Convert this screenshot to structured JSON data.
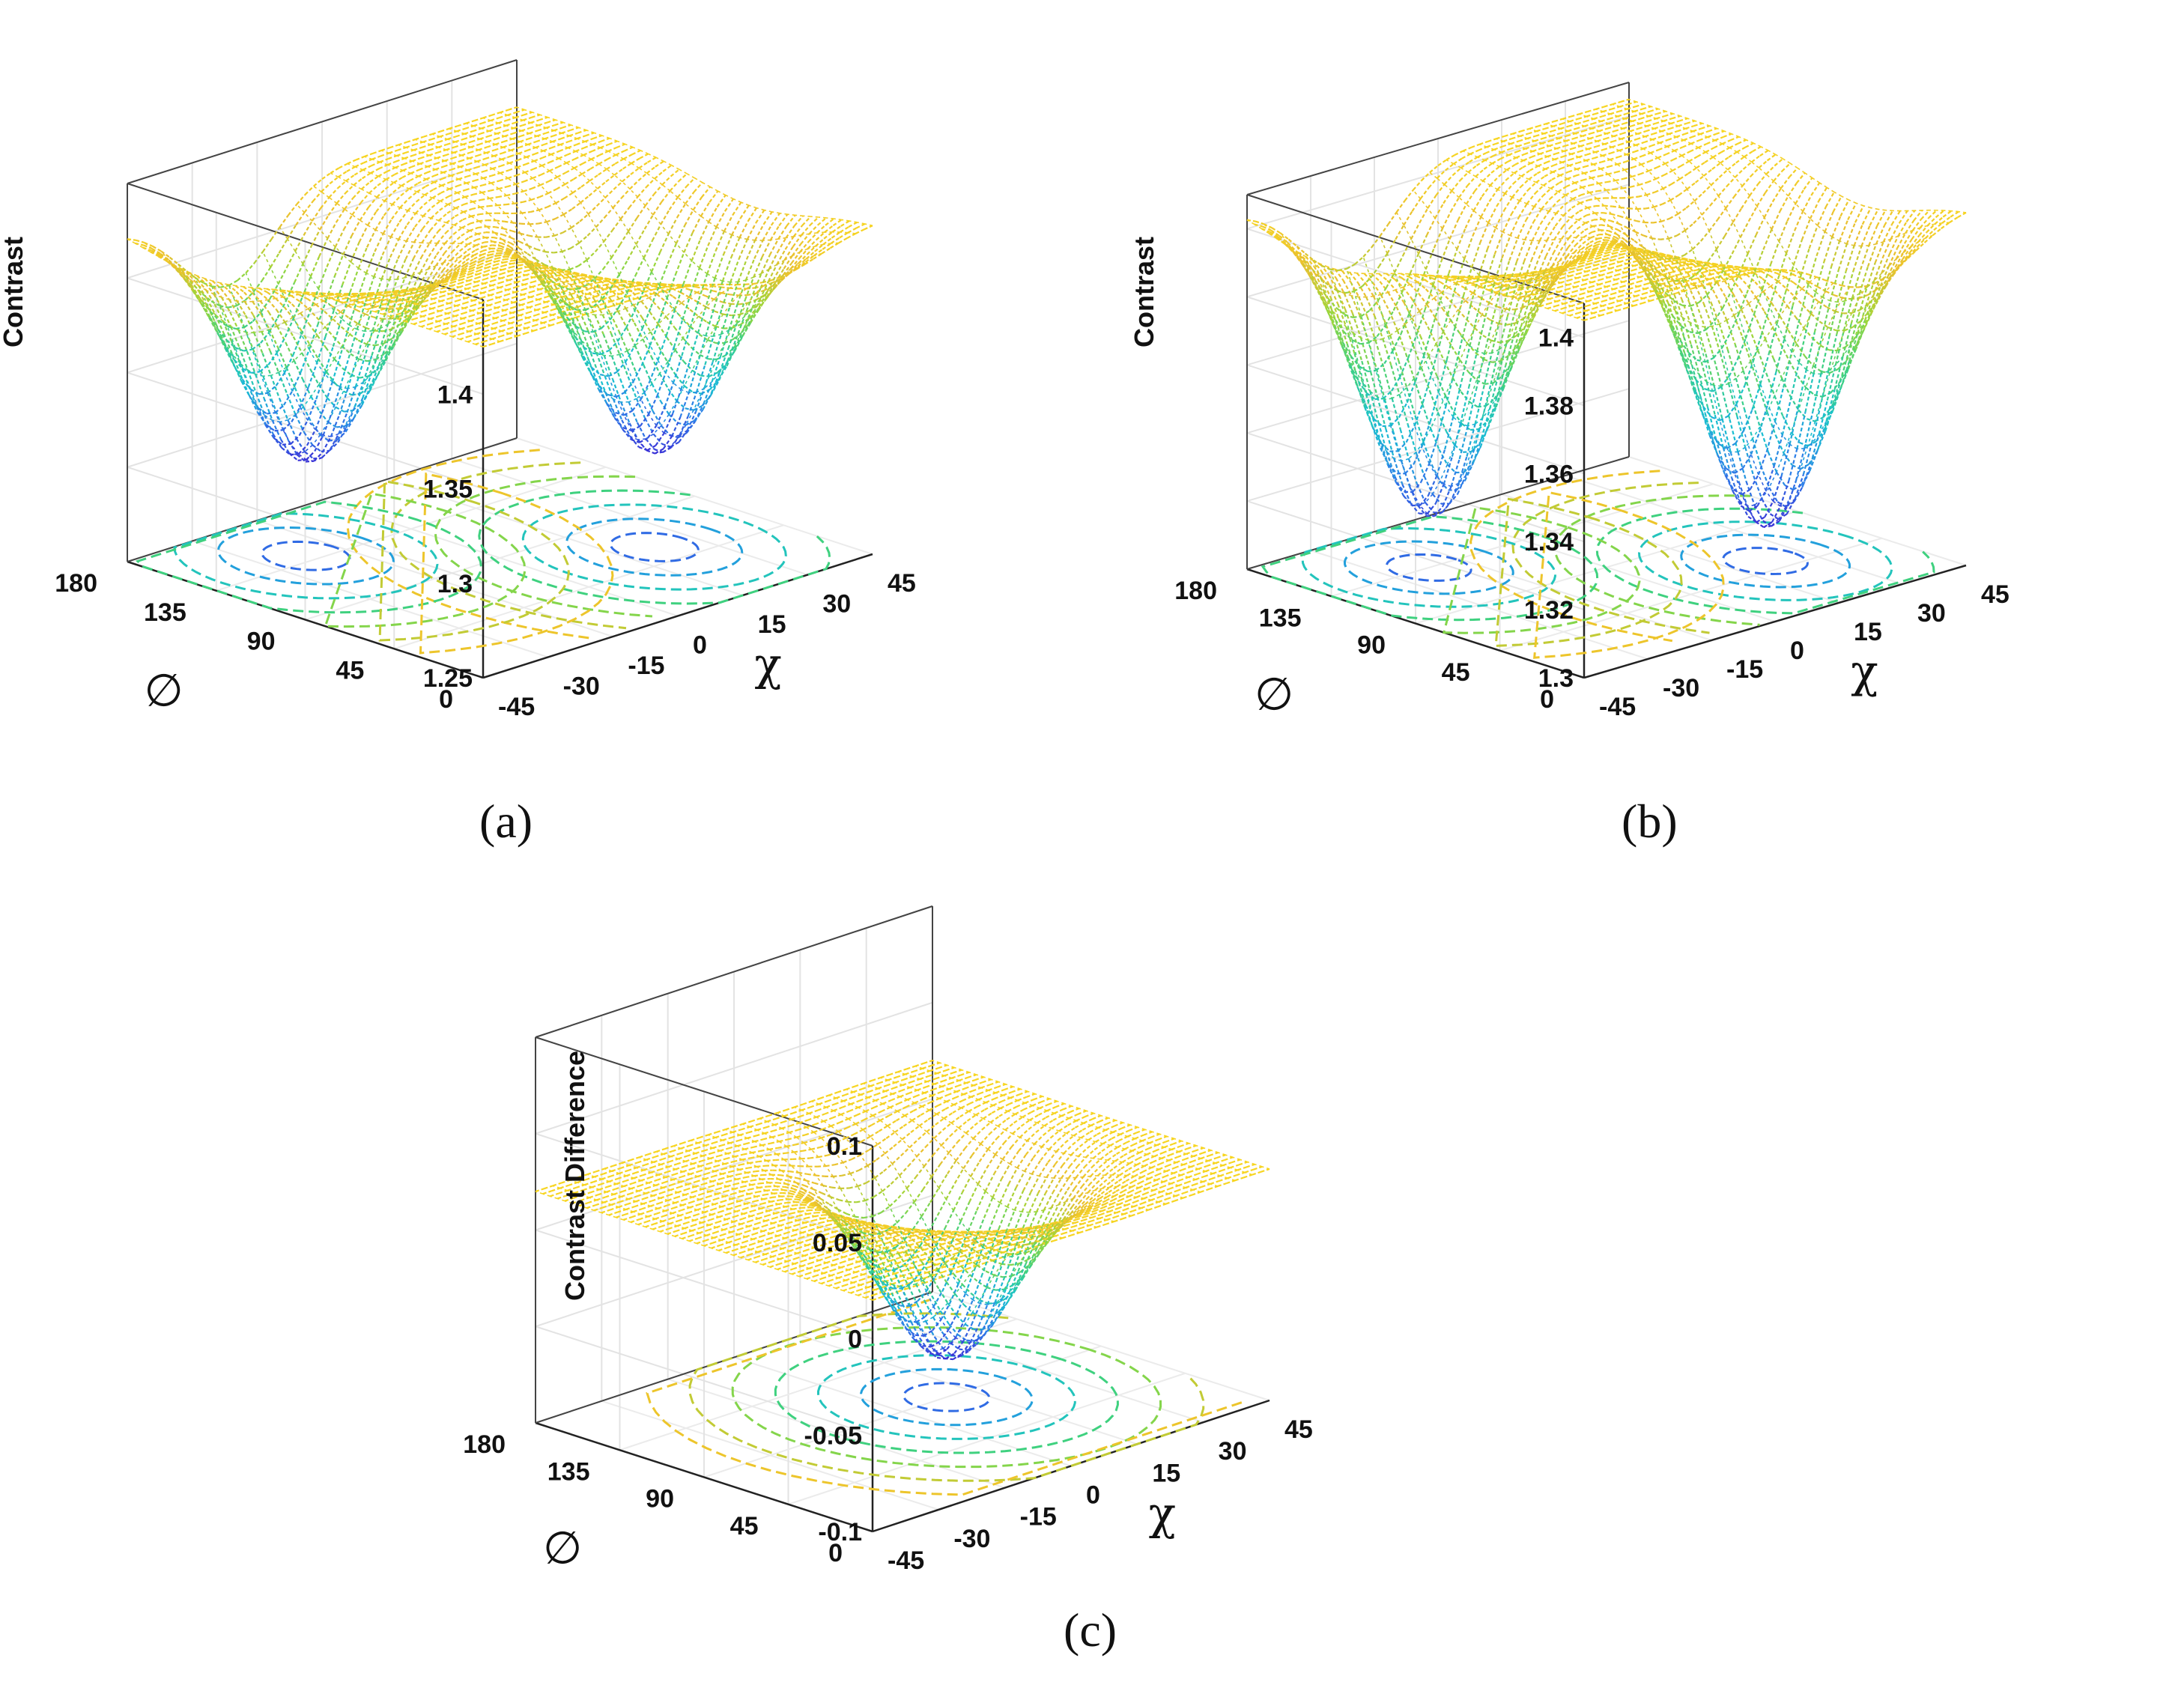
{
  "chart_data": [
    {
      "type": "surface3d",
      "caption": "(a)",
      "zlabel": "Contrast",
      "xlabel": "χ",
      "ylabel": "∅",
      "xticks": [
        "-45",
        "-30",
        "-15",
        "0",
        "15",
        "30",
        "45"
      ],
      "yticks": [
        "0",
        "45",
        "90",
        "135",
        "180"
      ],
      "zticks": [
        "1.25",
        "1.3",
        "1.35",
        "1.4"
      ],
      "xlim": [
        -45,
        45
      ],
      "ylim": [
        0,
        180
      ],
      "zlim": [
        1.25,
        1.45
      ],
      "surface": {
        "base": 1.425,
        "dips": [
          {
            "x": 22,
            "y": 60,
            "depth": 0.125
          },
          {
            "x": -22,
            "y": 140,
            "depth": 0.125
          }
        ]
      },
      "colormap": [
        "#3a2fd6",
        "#2d7fe8",
        "#19c0d0",
        "#3fd17f",
        "#9bd63a",
        "#e9c02f",
        "#f7d520"
      ]
    },
    {
      "type": "surface3d",
      "caption": "(b)",
      "zlabel": "Contrast",
      "xlabel": "χ",
      "ylabel": "∅",
      "xticks": [
        "-45",
        "-30",
        "-15",
        "0",
        "15",
        "30",
        "45"
      ],
      "yticks": [
        "0",
        "45",
        "90",
        "135",
        "180"
      ],
      "zticks": [
        "1.3",
        "1.32",
        "1.34",
        "1.36",
        "1.38",
        "1.4"
      ],
      "xlim": [
        -45,
        45
      ],
      "ylim": [
        0,
        180
      ],
      "zlim": [
        1.3,
        1.41
      ],
      "surface": {
        "base": 1.405,
        "dips": [
          {
            "x": 22,
            "y": 55,
            "depth": 0.095
          },
          {
            "x": -22,
            "y": 135,
            "depth": 0.09
          }
        ]
      },
      "colormap": [
        "#3a2fd6",
        "#2d7fe8",
        "#19c0d0",
        "#3fd17f",
        "#9bd63a",
        "#e9c02f",
        "#f7d520"
      ]
    },
    {
      "type": "surface3d",
      "caption": "(c)",
      "zlabel": "Contrast Difference",
      "xlabel": "χ",
      "ylabel": "∅",
      "xticks": [
        "-45",
        "-30",
        "-15",
        "0",
        "15",
        "30",
        "45"
      ],
      "yticks": [
        "0",
        "45",
        "90",
        "135",
        "180"
      ],
      "zticks": [
        "-0.1",
        "-0.05",
        "0",
        "0.05",
        "0.1"
      ],
      "xlim": [
        -45,
        45
      ],
      "ylim": [
        0,
        180
      ],
      "zlim": [
        -0.1,
        0.1
      ],
      "surface": {
        "base": 0.02,
        "dips": [
          {
            "x": 10,
            "y": 90,
            "depth": 0.1
          }
        ]
      },
      "colormap": [
        "#3a2fd6",
        "#2d7fe8",
        "#19c0d0",
        "#3fd17f",
        "#9bd63a",
        "#e9c02f",
        "#f7d520"
      ]
    }
  ]
}
